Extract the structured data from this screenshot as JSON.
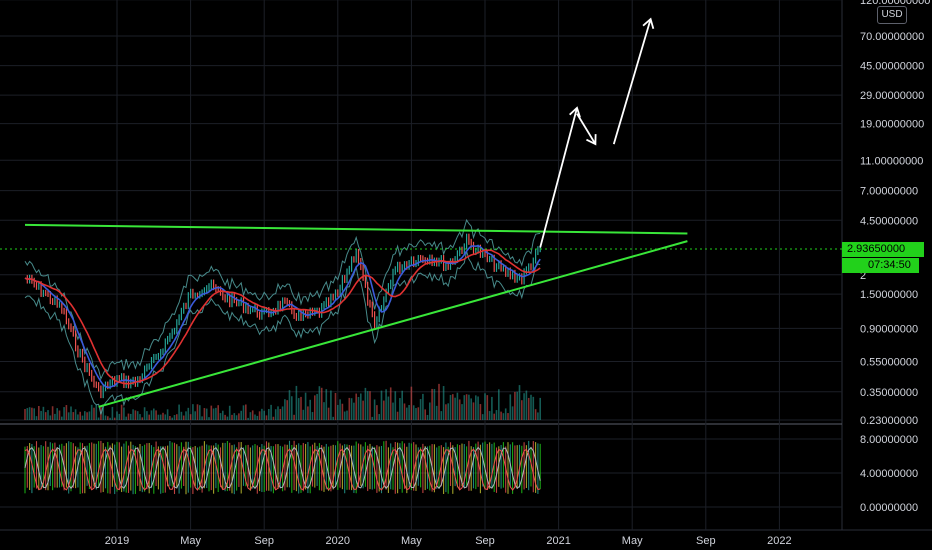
{
  "chart_data": {
    "type": "line",
    "currency": "USD",
    "last_price": "2.93650000",
    "countdown": "07:34:50",
    "price_axis_labels": [
      "120.00000000",
      "70.00000000",
      "45.00000000",
      "29.00000000",
      "19.00000000",
      "11.00000000",
      "7.00000000",
      "4.50000000",
      "2",
      "1.50000000",
      "0.90000000",
      "0.55000000",
      "0.35000000",
      "0.23000000"
    ],
    "oscillator_axis_labels": [
      "8.00000000",
      "4.00000000",
      "0.00000000"
    ],
    "time_axis_labels": [
      "2019",
      "May",
      "Sep",
      "2020",
      "May",
      "Sep",
      "2021",
      "May",
      "Sep",
      "2022"
    ],
    "scale": "log",
    "price_series": {
      "name": "",
      "x": [
        "2018-08",
        "2018-09",
        "2018-10",
        "2018-11",
        "2018-12",
        "2019-01",
        "2019-02",
        "2019-03",
        "2019-04",
        "2019-05",
        "2019-06",
        "2019-07",
        "2019-08",
        "2019-09",
        "2019-10",
        "2019-11",
        "2019-12",
        "2020-01",
        "2020-02",
        "2020-03",
        "2020-04",
        "2020-05",
        "2020-06",
        "2020-07",
        "2020-08",
        "2020-09",
        "2020-10",
        "2020-11",
        "2020-12"
      ],
      "y": [
        1.9,
        1.55,
        1.2,
        0.6,
        0.35,
        0.42,
        0.4,
        0.55,
        0.85,
        1.5,
        1.7,
        1.4,
        1.25,
        1.1,
        1.3,
        1.05,
        1.15,
        1.5,
        2.9,
        0.9,
        2.1,
        2.5,
        2.6,
        2.3,
        3.3,
        2.6,
        2.1,
        1.9,
        2.94
      ]
    },
    "annotations": {
      "resistance_line": {
        "from": [
          "2018-08",
          4.2
        ],
        "to": [
          "2021-08",
          3.7
        ],
        "color": "#39e639"
      },
      "support_line": {
        "from": [
          "2018-12",
          0.28
        ],
        "to": [
          "2021-08",
          3.3
        ],
        "color": "#39e639"
      },
      "projection_arrows": [
        {
          "from": [
            "2020-12",
            3.0
          ],
          "to": [
            "2021-02",
            24
          ]
        },
        {
          "from": [
            "2021-02",
            22
          ],
          "to": [
            "2021-03",
            14
          ]
        },
        {
          "from": [
            "2021-04",
            14
          ],
          "to": [
            "2021-06",
            90
          ]
        }
      ]
    }
  }
}
